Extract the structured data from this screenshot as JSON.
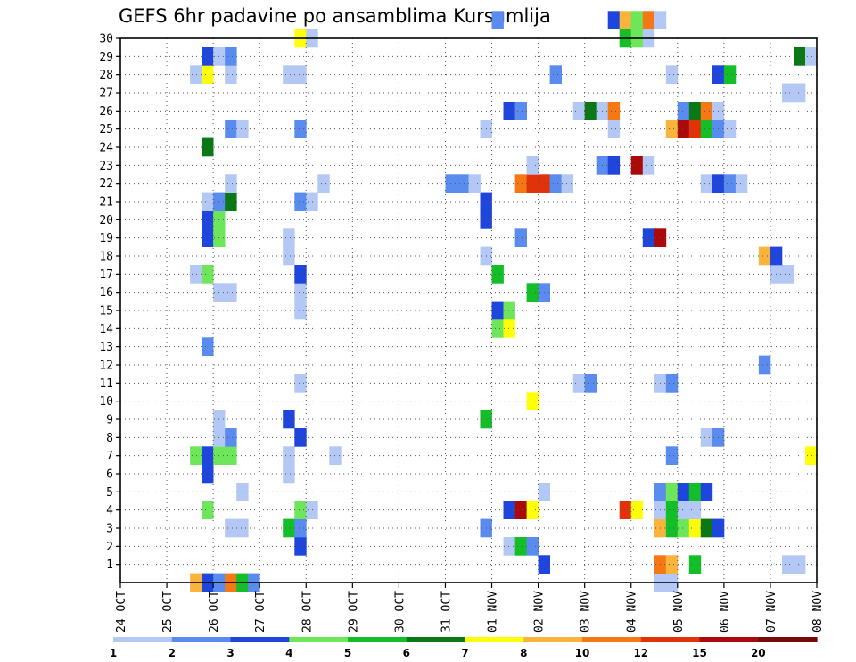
{
  "chart_data": {
    "type": "heatmap",
    "title": "GEFS 6hr padavine po ansamblima Kursumlija",
    "xlabel": "",
    "ylabel": "",
    "x_tick_labels": [
      "24 OCT",
      "25 OCT",
      "26 OCT",
      "27 OCT",
      "28 OCT",
      "29 OCT",
      "30 OCT",
      "31 OCT",
      "01 NOV",
      "02 NOV",
      "03 NOV",
      "04 NOV",
      "05 NOV",
      "06 NOV",
      "07 NOV",
      "08 NOV"
    ],
    "x_range_days": [
      0,
      15
    ],
    "y_tick_labels": [
      "1",
      "2",
      "3",
      "4",
      "5",
      "6",
      "7",
      "8",
      "9",
      "10",
      "11",
      "12",
      "13",
      "14",
      "15",
      "16",
      "17",
      "18",
      "19",
      "20",
      "21",
      "22",
      "23",
      "24",
      "25",
      "26",
      "27",
      "28",
      "29",
      "30"
    ],
    "y_range": [
      0,
      30
    ],
    "grid": "dotted",
    "legend_placement": "bottom",
    "colorbar": {
      "thresholds": [
        "1",
        "2",
        "3",
        "4",
        "5",
        "6",
        "7",
        "8",
        "10",
        "12",
        "15",
        "20"
      ],
      "colors": [
        "#b4c8f5",
        "#5a8cf0",
        "#1e46dc",
        "#6ee65a",
        "#14be28",
        "#0a7814",
        "#ffff0a",
        "#fab43c",
        "#f57814",
        "#e1320a",
        "#aa0a0a",
        "#780a0a"
      ]
    },
    "cells": [
      {
        "member": 0,
        "day": 1.5,
        "c": 7
      },
      {
        "member": 0,
        "day": 1.75,
        "c": 2
      },
      {
        "member": 0,
        "day": 2.0,
        "c": 1
      },
      {
        "member": 0,
        "day": 2.25,
        "c": 8
      },
      {
        "member": 0,
        "day": 2.5,
        "c": 4
      },
      {
        "member": 0,
        "day": 2.75,
        "c": 1
      },
      {
        "member": 0,
        "day": 11.5,
        "c": 0
      },
      {
        "member": 0,
        "day": 11.75,
        "c": 0
      },
      {
        "member": 1,
        "day": 9.0,
        "c": 2
      },
      {
        "member": 1,
        "day": 11.5,
        "c": 8
      },
      {
        "member": 1,
        "day": 11.75,
        "c": 7
      },
      {
        "member": 1,
        "day": 12.25,
        "c": 4
      },
      {
        "member": 1,
        "day": 14.25,
        "c": 0
      },
      {
        "member": 1,
        "day": 14.5,
        "c": 0
      },
      {
        "member": 2,
        "day": 3.75,
        "c": 2
      },
      {
        "member": 2,
        "day": 8.25,
        "c": 0
      },
      {
        "member": 2,
        "day": 8.5,
        "c": 4
      },
      {
        "member": 2,
        "day": 8.75,
        "c": 1
      },
      {
        "member": 3,
        "day": 2.25,
        "c": 0
      },
      {
        "member": 3,
        "day": 2.5,
        "c": 0
      },
      {
        "member": 3,
        "day": 3.5,
        "c": 4
      },
      {
        "member": 3,
        "day": 3.75,
        "c": 1
      },
      {
        "member": 3,
        "day": 7.75,
        "c": 1
      },
      {
        "member": 3,
        "day": 11.5,
        "c": 7
      },
      {
        "member": 3,
        "day": 11.75,
        "c": 4
      },
      {
        "member": 3,
        "day": 12.0,
        "c": 3
      },
      {
        "member": 3,
        "day": 12.25,
        "c": 6
      },
      {
        "member": 3,
        "day": 12.5,
        "c": 5
      },
      {
        "member": 3,
        "day": 12.75,
        "c": 2
      },
      {
        "member": 4,
        "day": 1.75,
        "c": 3
      },
      {
        "member": 4,
        "day": 3.75,
        "c": 3
      },
      {
        "member": 4,
        "day": 4.0,
        "c": 0
      },
      {
        "member": 4,
        "day": 8.25,
        "c": 2
      },
      {
        "member": 4,
        "day": 8.5,
        "c": 10
      },
      {
        "member": 4,
        "day": 8.75,
        "c": 6
      },
      {
        "member": 4,
        "day": 10.75,
        "c": 9
      },
      {
        "member": 4,
        "day": 11.0,
        "c": 6
      },
      {
        "member": 4,
        "day": 11.5,
        "c": 0
      },
      {
        "member": 4,
        "day": 11.75,
        "c": 4
      },
      {
        "member": 4,
        "day": 12.0,
        "c": 0
      },
      {
        "member": 4,
        "day": 12.25,
        "c": 0
      },
      {
        "member": 5,
        "day": 2.5,
        "c": 0
      },
      {
        "member": 5,
        "day": 9.0,
        "c": 0
      },
      {
        "member": 5,
        "day": 11.5,
        "c": 1
      },
      {
        "member": 5,
        "day": 11.75,
        "c": 3
      },
      {
        "member": 5,
        "day": 12.0,
        "c": 2
      },
      {
        "member": 5,
        "day": 12.25,
        "c": 4
      },
      {
        "member": 5,
        "day": 12.5,
        "c": 2
      },
      {
        "member": 6,
        "day": 1.75,
        "c": 2
      },
      {
        "member": 6,
        "day": 3.5,
        "c": 0
      },
      {
        "member": 7,
        "day": 1.5,
        "c": 3
      },
      {
        "member": 7,
        "day": 1.75,
        "c": 2
      },
      {
        "member": 7,
        "day": 2.0,
        "c": 3
      },
      {
        "member": 7,
        "day": 2.25,
        "c": 3
      },
      {
        "member": 7,
        "day": 3.5,
        "c": 0
      },
      {
        "member": 7,
        "day": 4.5,
        "c": 0
      },
      {
        "member": 7,
        "day": 11.75,
        "c": 1
      },
      {
        "member": 7,
        "day": 14.75,
        "c": 6
      },
      {
        "member": 8,
        "day": 2.0,
        "c": 0
      },
      {
        "member": 8,
        "day": 2.25,
        "c": 1
      },
      {
        "member": 8,
        "day": 3.75,
        "c": 2
      },
      {
        "member": 8,
        "day": 12.5,
        "c": 0
      },
      {
        "member": 8,
        "day": 12.75,
        "c": 1
      },
      {
        "member": 9,
        "day": 2.0,
        "c": 0
      },
      {
        "member": 9,
        "day": 3.5,
        "c": 2
      },
      {
        "member": 9,
        "day": 7.75,
        "c": 4
      },
      {
        "member": 10,
        "day": 8.75,
        "c": 6
      },
      {
        "member": 11,
        "day": 3.75,
        "c": 0
      },
      {
        "member": 11,
        "day": 9.75,
        "c": 0
      },
      {
        "member": 11,
        "day": 10.0,
        "c": 1
      },
      {
        "member": 11,
        "day": 11.5,
        "c": 0
      },
      {
        "member": 11,
        "day": 11.75,
        "c": 1
      },
      {
        "member": 12,
        "day": 13.75,
        "c": 1
      },
      {
        "member": 13,
        "day": 1.75,
        "c": 1
      },
      {
        "member": 14,
        "day": 8.0,
        "c": 3
      },
      {
        "member": 14,
        "day": 8.25,
        "c": 6
      },
      {
        "member": 15,
        "day": 3.75,
        "c": 0
      },
      {
        "member": 15,
        "day": 8.0,
        "c": 2
      },
      {
        "member": 15,
        "day": 8.25,
        "c": 3
      },
      {
        "member": 16,
        "day": 2.0,
        "c": 0
      },
      {
        "member": 16,
        "day": 2.25,
        "c": 0
      },
      {
        "member": 16,
        "day": 3.75,
        "c": 0
      },
      {
        "member": 16,
        "day": 8.75,
        "c": 4
      },
      {
        "member": 16,
        "day": 9.0,
        "c": 1
      },
      {
        "member": 17,
        "day": 1.5,
        "c": 0
      },
      {
        "member": 17,
        "day": 1.75,
        "c": 3
      },
      {
        "member": 17,
        "day": 3.75,
        "c": 2
      },
      {
        "member": 17,
        "day": 8.0,
        "c": 4
      },
      {
        "member": 17,
        "day": 14.0,
        "c": 0
      },
      {
        "member": 17,
        "day": 14.25,
        "c": 0
      },
      {
        "member": 18,
        "day": 3.5,
        "c": 0
      },
      {
        "member": 18,
        "day": 7.75,
        "c": 0
      },
      {
        "member": 18,
        "day": 13.75,
        "c": 7
      },
      {
        "member": 18,
        "day": 14.0,
        "c": 2
      },
      {
        "member": 19,
        "day": 1.75,
        "c": 2
      },
      {
        "member": 19,
        "day": 2.0,
        "c": 3
      },
      {
        "member": 19,
        "day": 3.5,
        "c": 0
      },
      {
        "member": 19,
        "day": 8.5,
        "c": 1
      },
      {
        "member": 19,
        "day": 11.25,
        "c": 2
      },
      {
        "member": 19,
        "day": 11.5,
        "c": 10
      },
      {
        "member": 20,
        "day": 1.75,
        "c": 2
      },
      {
        "member": 20,
        "day": 2.0,
        "c": 3
      },
      {
        "member": 20,
        "day": 7.75,
        "c": 2
      },
      {
        "member": 21,
        "day": 1.75,
        "c": 0
      },
      {
        "member": 21,
        "day": 2.0,
        "c": 1
      },
      {
        "member": 21,
        "day": 2.25,
        "c": 5
      },
      {
        "member": 21,
        "day": 3.75,
        "c": 1
      },
      {
        "member": 21,
        "day": 4.0,
        "c": 0
      },
      {
        "member": 21,
        "day": 7.75,
        "c": 2
      },
      {
        "member": 22,
        "day": 2.25,
        "c": 0
      },
      {
        "member": 22,
        "day": 4.25,
        "c": 0
      },
      {
        "member": 22,
        "day": 7.0,
        "c": 1
      },
      {
        "member": 22,
        "day": 7.25,
        "c": 1
      },
      {
        "member": 22,
        "day": 7.5,
        "c": 0
      },
      {
        "member": 22,
        "day": 8.5,
        "c": 8
      },
      {
        "member": 22,
        "day": 8.75,
        "c": 9
      },
      {
        "member": 22,
        "day": 9.0,
        "c": 9
      },
      {
        "member": 22,
        "day": 9.25,
        "c": 1
      },
      {
        "member": 22,
        "day": 9.5,
        "c": 0
      },
      {
        "member": 22,
        "day": 12.5,
        "c": 0
      },
      {
        "member": 22,
        "day": 12.75,
        "c": 2
      },
      {
        "member": 22,
        "day": 13.0,
        "c": 1
      },
      {
        "member": 22,
        "day": 13.25,
        "c": 0
      },
      {
        "member": 23,
        "day": 8.75,
        "c": 0
      },
      {
        "member": 23,
        "day": 10.25,
        "c": 1
      },
      {
        "member": 23,
        "day": 10.5,
        "c": 2
      },
      {
        "member": 23,
        "day": 11.0,
        "c": 10
      },
      {
        "member": 23,
        "day": 11.25,
        "c": 0
      },
      {
        "member": 24,
        "day": 1.75,
        "c": 5
      },
      {
        "member": 25,
        "day": 2.25,
        "c": 1
      },
      {
        "member": 25,
        "day": 2.5,
        "c": 0
      },
      {
        "member": 25,
        "day": 3.75,
        "c": 1
      },
      {
        "member": 25,
        "day": 7.75,
        "c": 0
      },
      {
        "member": 25,
        "day": 10.5,
        "c": 0
      },
      {
        "member": 25,
        "day": 11.75,
        "c": 7
      },
      {
        "member": 25,
        "day": 12.0,
        "c": 10
      },
      {
        "member": 25,
        "day": 12.25,
        "c": 9
      },
      {
        "member": 25,
        "day": 12.5,
        "c": 4
      },
      {
        "member": 25,
        "day": 12.75,
        "c": 1
      },
      {
        "member": 25,
        "day": 13.0,
        "c": 0
      },
      {
        "member": 26,
        "day": 8.25,
        "c": 2
      },
      {
        "member": 26,
        "day": 8.5,
        "c": 1
      },
      {
        "member": 26,
        "day": 9.75,
        "c": 0
      },
      {
        "member": 26,
        "day": 10.0,
        "c": 5
      },
      {
        "member": 26,
        "day": 10.25,
        "c": 0
      },
      {
        "member": 26,
        "day": 10.5,
        "c": 8
      },
      {
        "member": 26,
        "day": 12.0,
        "c": 1
      },
      {
        "member": 26,
        "day": 12.25,
        "c": 5
      },
      {
        "member": 26,
        "day": 12.5,
        "c": 8
      },
      {
        "member": 26,
        "day": 12.75,
        "c": 0
      },
      {
        "member": 27,
        "day": 14.25,
        "c": 0
      },
      {
        "member": 27,
        "day": 14.5,
        "c": 0
      },
      {
        "member": 28,
        "day": 1.5,
        "c": 0
      },
      {
        "member": 28,
        "day": 1.75,
        "c": 6
      },
      {
        "member": 28,
        "day": 2.25,
        "c": 0
      },
      {
        "member": 28,
        "day": 3.5,
        "c": 0
      },
      {
        "member": 28,
        "day": 3.75,
        "c": 0
      },
      {
        "member": 28,
        "day": 9.25,
        "c": 1
      },
      {
        "member": 28,
        "day": 11.75,
        "c": 0
      },
      {
        "member": 28,
        "day": 12.75,
        "c": 2
      },
      {
        "member": 28,
        "day": 13.0,
        "c": 4
      },
      {
        "member": 29,
        "day": 1.75,
        "c": 2
      },
      {
        "member": 29,
        "day": 2.0,
        "c": 0
      },
      {
        "member": 29,
        "day": 2.25,
        "c": 1
      },
      {
        "member": 29,
        "day": 14.5,
        "c": 5
      },
      {
        "member": 29,
        "day": 14.75,
        "c": 0
      },
      {
        "member": 30,
        "day": 3.75,
        "c": 6
      },
      {
        "member": 30,
        "day": 4.0,
        "c": 0
      },
      {
        "member": 30,
        "day": 10.75,
        "c": 4
      },
      {
        "member": 30,
        "day": 11.0,
        "c": 3
      },
      {
        "member": 30,
        "day": 11.25,
        "c": 0
      },
      {
        "member": 31,
        "day": 8.0,
        "c": 1
      },
      {
        "member": 31,
        "day": 10.5,
        "c": 2
      },
      {
        "member": 31,
        "day": 10.75,
        "c": 7
      },
      {
        "member": 31,
        "day": 11.0,
        "c": 3
      },
      {
        "member": 31,
        "day": 11.25,
        "c": 8
      },
      {
        "member": 31,
        "day": 11.5,
        "c": 0
      }
    ]
  }
}
